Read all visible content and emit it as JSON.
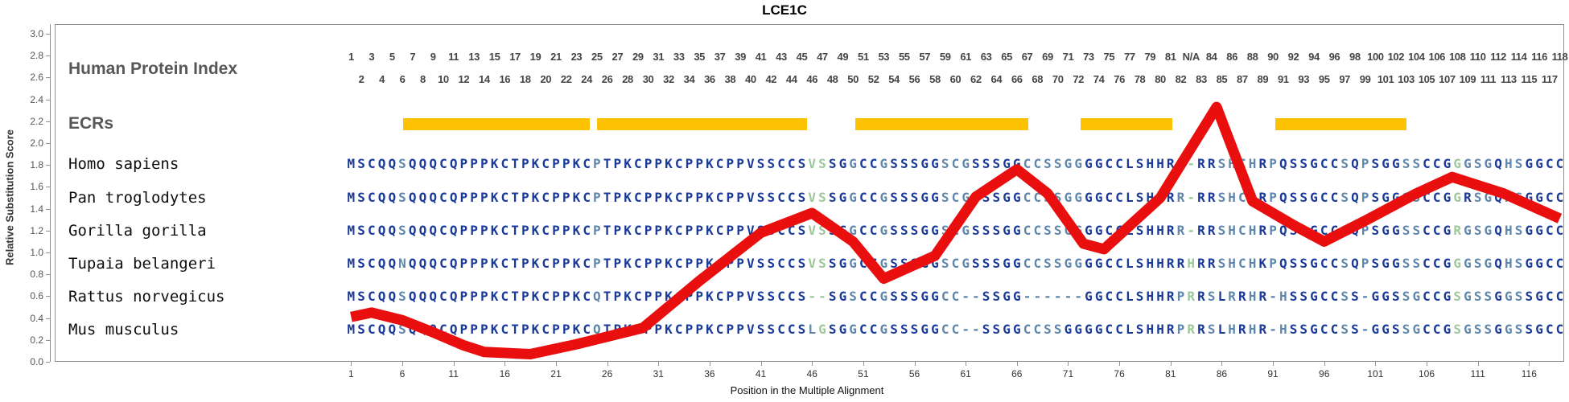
{
  "title": "LCE1C",
  "left_panel": {
    "index_header": "Human Protein Index",
    "ecr_header": "ECRs"
  },
  "y_axis": {
    "label": "Relative Substitution Score",
    "ticks": [
      "0.0",
      "0.2",
      "0.4",
      "0.6",
      "0.8",
      "1.0",
      "1.2",
      "1.4",
      "1.6",
      "1.8",
      "2.0",
      "2.2",
      "2.4",
      "2.6",
      "2.8",
      "3.0"
    ],
    "min": 0.0,
    "max": 3.0
  },
  "x_axis": {
    "label": "Position in the Multiple Alignment",
    "ticks": [
      "1",
      "6",
      "11",
      "16",
      "21",
      "26",
      "31",
      "36",
      "41",
      "46",
      "51",
      "56",
      "61",
      "66",
      "71",
      "76",
      "81",
      "86",
      "91",
      "96",
      "101",
      "106",
      "111",
      "116"
    ]
  },
  "human_protein_index": {
    "top_row": [
      "1",
      "3",
      "5",
      "7",
      "9",
      "11",
      "13",
      "15",
      "17",
      "19",
      "21",
      "23",
      "25",
      "27",
      "29",
      "31",
      "33",
      "35",
      "37",
      "39",
      "41",
      "43",
      "45",
      "47",
      "49",
      "51",
      "53",
      "55",
      "57",
      "59",
      "61",
      "63",
      "65",
      "67",
      "69",
      "71",
      "73",
      "75",
      "77",
      "79",
      "81",
      "N/A",
      "84",
      "86",
      "88",
      "90",
      "92",
      "94",
      "96",
      "98",
      "100",
      "102",
      "104",
      "106",
      "108",
      "110",
      "112",
      "114",
      "116",
      "118"
    ],
    "bottom_row": [
      "2",
      "4",
      "6",
      "8",
      "10",
      "12",
      "14",
      "16",
      "18",
      "20",
      "22",
      "24",
      "26",
      "28",
      "30",
      "32",
      "34",
      "36",
      "38",
      "40",
      "42",
      "44",
      "46",
      "48",
      "50",
      "52",
      "54",
      "56",
      "58",
      "60",
      "62",
      "64",
      "66",
      "68",
      "70",
      "72",
      "74",
      "76",
      "78",
      "80",
      "82",
      "83",
      "85",
      "87",
      "89",
      "91",
      "93",
      "95",
      "97",
      "99",
      "101",
      "103",
      "105",
      "107",
      "109",
      "111",
      "113",
      "115",
      "117"
    ]
  },
  "alignment": {
    "num_columns": 119,
    "palette": {
      "n": "#1a3a9a",
      "s": "#5f86ab",
      "g": "#9ec79b"
    },
    "species": [
      {
        "name": "Homo sapiens",
        "seq": [
          "MSCQQSQQQC",
          "QPPPKCTPKC",
          "PPKCPTPKCP",
          "PKCPPKCPPV",
          "SSCCSVSSGG",
          "CCGSSSGGSC",
          "GSSSGGCCSS",
          "GGGGCCLSHH",
          "RR-RRSHCHR",
          "PQSSGCCSQP",
          "SGGSSCCGGG",
          "SGQHSGGCC"
        ],
        "mask": [
          "nnnnnsnnnn",
          "nnnnnnnnnn",
          "nnnnsnnnnn",
          "nnnnnnnnnn",
          "nnnnnggnns",
          "nnsnnnnnss",
          "snnnnnssss",
          "ssnnnnnnnn",
          "nsgnnssssn",
          "snnnnnnsns",
          "nnnssnnngs",
          "ssnssnnnn"
        ]
      },
      {
        "name": "Pan troglodytes",
        "seq": [
          "MSCQQSQQQC",
          "QPPPKCTPKC",
          "PPKCPTPKCP",
          "PKCPPKCPPV",
          "SSCCSVSSGG",
          "CCGSSSGGSC",
          "GSSSGGCCSS",
          "GGGGCCLSHH",
          "RR-RRSHCHR",
          "PQSSGCCSQP",
          "SGGSSCCGGR",
          "SGQHSGGCC"
        ],
        "mask": [
          "nnnnnsnnnn",
          "nnnnnnnnnn",
          "nnnnsnnnnn",
          "nnnnnnnnnn",
          "nnnnnggnns",
          "nnsnnnnnss",
          "snnnnnssss",
          "ssnnnnnnnn",
          "nsgnnssssn",
          "snnnnnnsns",
          "nnnssnnngn",
          "ssnssnnnn"
        ]
      },
      {
        "name": "Gorilla gorilla",
        "seq": [
          "MSCQQSQQQC",
          "QPPPKCTPKC",
          "PPKCPTPKCP",
          "PKCPPKCPPV",
          "SSCCSVSSGG",
          "CCGSSSGGSC",
          "GSSSGGCCSS",
          "GGGGCCLSHH",
          "RR-RRSHCHR",
          "PQSSGCCSQP",
          "SGGSSCCGRG",
          "SGQHSGGCC"
        ],
        "mask": [
          "nnnnnsnnnn",
          "nnnnnnnnnn",
          "nnnnsnnnnn",
          "nnnnnnnnnn",
          "nnnnnggnns",
          "nnsnnnnnss",
          "snnnnnssss",
          "ssnnnnnnnn",
          "nsgnnssssn",
          "snnnnnnsns",
          "nnnssnnngs",
          "ssnssnnnn"
        ]
      },
      {
        "name": "Tupaia belangeri",
        "seq": [
          "MSCQQNQQQC",
          "QPPPKCTPKC",
          "PPKCPTPKCP",
          "PKCPPKCPPV",
          "SSCCSVSSGG",
          "CCGSSSGGSC",
          "GSSSGGCCSS",
          "GGGGCCLSHH",
          "RRHRRSHCHK",
          "PQSSGCCSQP",
          "SGGSSCCGGG",
          "SGQHSGGCC"
        ],
        "mask": [
          "nnnnnsnnnn",
          "nnnnnnnnnn",
          "nnnnsnnnnn",
          "nnnnnnnnnn",
          "nnnnnggnns",
          "nnsnnnnnss",
          "snnnnnssss",
          "ssnnnnnnnn",
          "nngnnssssn",
          "snnnnnnsns",
          "nnnssnnngs",
          "ssnssnnnn"
        ]
      },
      {
        "name": "Rattus norvegicus",
        "seq": [
          "MSCQQSQQQC",
          "QPPPKCTPKC",
          "PPKCQTPKCP",
          "PKCPPKCPPV",
          "SSCCS--SGS",
          "CCGSSSGGCC",
          "--SSGG----",
          "--GGCCLSHH",
          "RPRRSLRRHR",
          "-HSSGCCSS-",
          "GGSSGCCGSG",
          "SSGGSSGCC"
        ],
        "mask": [
          "nnnnnsnnnn",
          "nnnnnnnnnn",
          "nnnnsnnnnn",
          "nnnnnnnnnn",
          "nnnnnggnns",
          "nnsnnnnnss",
          "ssnnnnssss",
          "ssnnnnnnnn",
          "nsgnsnsnsn",
          "ssnnnnnsns",
          "nnnssnnngs",
          "ssnssnnnn"
        ]
      },
      {
        "name": "Mus musculus",
        "seq": [
          "MSCQQSQQQC",
          "QPPPKCTPKC",
          "PPKCQTPKCP",
          "PKCPPKCPPV",
          "SSCCSLGSGG",
          "CCGSSSGGCC",
          "--SSGGCCSS",
          "GGGGCCLSHH",
          "RPRRSLHRHR",
          "-HSSGCCSS-",
          "GGSSGCCGSG",
          "SSGGSSGCC"
        ],
        "mask": [
          "nnnnnsnnnn",
          "nnnnnnnnnn",
          "nnnnsnnnnn",
          "nnnnnnnnnn",
          "nnnnnsgnns",
          "nnsnnnnnss",
          "ssnnnnssss",
          "nnnnnnnnnn",
          "nsgnsnsnsn",
          "ssnnnnnsns",
          "nnnssnnngs",
          "ssnssnnnn"
        ]
      }
    ]
  },
  "chart_data": {
    "type": "line",
    "title": "LCE1C",
    "xlabel": "Position in the Multiple Alignment",
    "ylabel": "Relative Substitution Score",
    "ylim": [
      0.0,
      3.0
    ],
    "xlim": [
      1,
      119
    ],
    "x_tick_labels": [
      "1",
      "6",
      "11",
      "16",
      "21",
      "26",
      "31",
      "36",
      "41",
      "46",
      "51",
      "56",
      "61",
      "66",
      "71",
      "76",
      "81",
      "86",
      "91",
      "96",
      "101",
      "106",
      "111",
      "116"
    ],
    "grid": false,
    "legend": "none",
    "ecr_color": "#fcc203",
    "ecr_regions": [
      [
        6.6,
        24.8
      ],
      [
        25.5,
        46.0
      ],
      [
        50.7,
        67.6
      ],
      [
        72.7,
        81.7
      ],
      [
        91.7,
        104.5
      ]
    ],
    "series": [
      {
        "name": "Relative Substitution Score",
        "color": "#e90f0f",
        "points": [
          [
            1,
            0.41
          ],
          [
            3,
            0.45
          ],
          [
            6,
            0.38
          ],
          [
            9,
            0.27
          ],
          [
            12,
            0.15
          ],
          [
            14,
            0.09
          ],
          [
            18.5,
            0.07
          ],
          [
            23,
            0.16
          ],
          [
            29.5,
            0.31
          ],
          [
            35,
            0.74
          ],
          [
            41,
            1.18
          ],
          [
            46,
            1.36
          ],
          [
            50,
            1.1
          ],
          [
            53,
            0.76
          ],
          [
            58,
            0.97
          ],
          [
            62,
            1.51
          ],
          [
            66,
            1.76
          ],
          [
            69,
            1.54
          ],
          [
            72.5,
            1.08
          ],
          [
            74.5,
            1.03
          ],
          [
            80,
            1.5
          ],
          [
            85.5,
            2.33
          ],
          [
            89,
            1.47
          ],
          [
            93,
            1.25
          ],
          [
            96,
            1.1
          ],
          [
            100,
            1.29
          ],
          [
            105,
            1.54
          ],
          [
            108.5,
            1.69
          ],
          [
            113.5,
            1.54
          ],
          [
            119,
            1.31
          ]
        ]
      }
    ]
  }
}
